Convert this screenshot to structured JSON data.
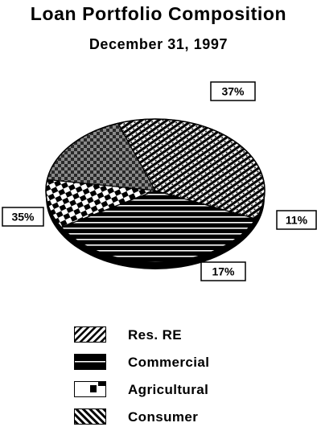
{
  "header": {
    "title": "Loan Portfolio Composition",
    "subtitle": "December 31, 1997"
  },
  "chart_data": {
    "type": "pie",
    "title": "Loan Portfolio Composition",
    "subtitle": "December 31, 1997",
    "legend_position": "bottom",
    "slices": [
      {
        "name": "Res. RE",
        "value": 37,
        "label": "37%",
        "pattern": "diagonal-dots"
      },
      {
        "name": "Commercial",
        "value": 35,
        "label": "35%",
        "pattern": "horizontal-stripes"
      },
      {
        "name": "Agricultural",
        "value": 11,
        "label": "11%",
        "pattern": "checker"
      },
      {
        "name": "Consumer",
        "value": 17,
        "label": "17%",
        "pattern": "dark-checker"
      }
    ]
  },
  "legend": {
    "items": [
      {
        "label": "Res. RE",
        "pattern": "diagonal-hatch"
      },
      {
        "label": "Commercial",
        "pattern": "horizontal-stripes"
      },
      {
        "label": "Agricultural",
        "pattern": "checker"
      },
      {
        "label": "Consumer",
        "pattern": "back-diagonal-hatch"
      }
    ]
  }
}
